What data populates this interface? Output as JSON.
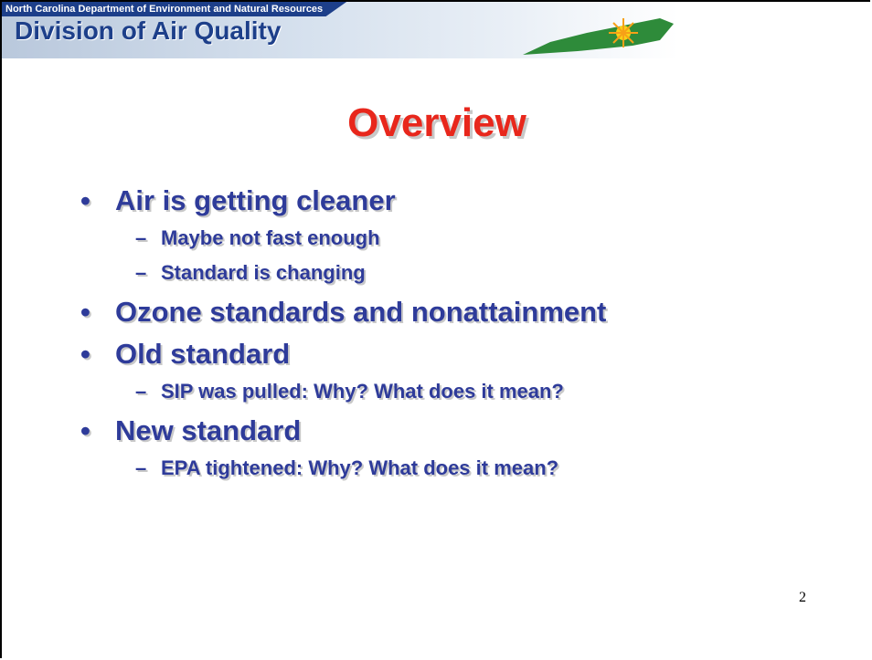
{
  "header": {
    "department": "North Carolina Department of Environment and Natural Resources",
    "division": "Division of Air Quality"
  },
  "title": "Overview",
  "bullets": [
    {
      "text": "Air is getting cleaner",
      "sub": [
        "Maybe not fast enough",
        "Standard is changing"
      ]
    },
    {
      "text": "Ozone standards and nonattainment",
      "sub": []
    },
    {
      "text": "Old standard",
      "sub": [
        "SIP was pulled: Why? What does it mean?"
      ]
    },
    {
      "text": "New standard",
      "sub": [
        "EPA tightened: Why? What does it mean?"
      ]
    }
  ],
  "page_number": "2"
}
